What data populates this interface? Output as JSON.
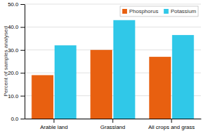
{
  "chart_data": {
    "type": "bar",
    "categories": [
      "Arable land",
      "Grassland",
      "All crops and grass"
    ],
    "series": [
      {
        "name": "Phosphorus",
        "color": "#E86010",
        "values": [
          19.0,
          30.0,
          27.0
        ]
      },
      {
        "name": "Potassium",
        "color": "#30C8E8",
        "values": [
          32.0,
          43.0,
          36.5
        ]
      }
    ],
    "ylabel": "Percent of samples analysed",
    "ylim": [
      0,
      50
    ],
    "yticks": [
      {
        "value": 0,
        "label": "0.0"
      },
      {
        "value": 10,
        "label": "10.0"
      },
      {
        "value": 20,
        "label": "20.0"
      },
      {
        "value": 30,
        "label": "30.0"
      },
      {
        "value": 40,
        "label": "40.0"
      },
      {
        "value": 50,
        "label": "50.0"
      }
    ],
    "grid": true,
    "legend": "upper right"
  }
}
